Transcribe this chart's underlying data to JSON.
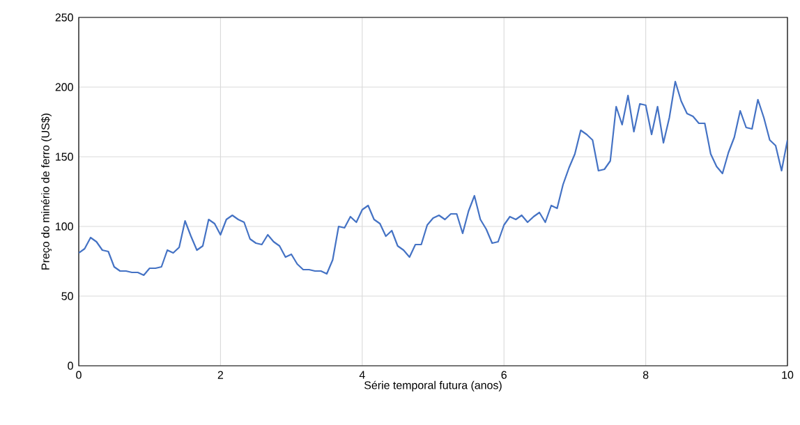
{
  "chart_data": {
    "type": "line",
    "xlabel": "Série temporal futura (anos)",
    "ylabel": "Preço do minério de ferro (US$)",
    "xlim": [
      0,
      10
    ],
    "xticks": [
      0,
      2,
      4,
      6,
      8,
      10
    ],
    "ylim": [
      0,
      250
    ],
    "yticks": [
      0,
      50,
      100,
      150,
      200,
      250
    ],
    "grid": true,
    "marker": "none",
    "line_style": "solid",
    "series": [
      {
        "color": "#4472c4",
        "x": [
          0,
          0.083,
          0.167,
          0.25,
          0.333,
          0.417,
          0.5,
          0.583,
          0.667,
          0.75,
          0.833,
          0.917,
          1,
          1.083,
          1.167,
          1.25,
          1.333,
          1.417,
          1.5,
          1.583,
          1.667,
          1.75,
          1.833,
          1.917,
          2,
          2.083,
          2.167,
          2.25,
          2.333,
          2.417,
          2.5,
          2.583,
          2.667,
          2.75,
          2.833,
          2.917,
          3,
          3.083,
          3.167,
          3.25,
          3.333,
          3.417,
          3.5,
          3.583,
          3.667,
          3.75,
          3.833,
          3.917,
          4,
          4.083,
          4.167,
          4.25,
          4.333,
          4.417,
          4.5,
          4.583,
          4.667,
          4.75,
          4.833,
          4.917,
          5,
          5.083,
          5.167,
          5.25,
          5.333,
          5.417,
          5.5,
          5.583,
          5.667,
          5.75,
          5.833,
          5.917,
          6,
          6.083,
          6.167,
          6.25,
          6.333,
          6.417,
          6.5,
          6.583,
          6.667,
          6.75,
          6.833,
          6.917,
          7,
          7.083,
          7.167,
          7.25,
          7.333,
          7.417,
          7.5,
          7.583,
          7.667,
          7.75,
          7.833,
          7.917,
          8,
          8.083,
          8.167,
          8.25,
          8.333,
          8.417,
          8.5,
          8.583,
          8.667,
          8.75,
          8.833,
          8.917,
          9,
          9.083,
          9.167,
          9.25,
          9.333,
          9.417,
          9.5,
          9.583,
          9.667,
          9.75,
          9.833,
          9.917,
          10
        ],
        "values": [
          81,
          84,
          92,
          89,
          83,
          82,
          71,
          68,
          68,
          67,
          67,
          65,
          70,
          70,
          71,
          83,
          81,
          85,
          104,
          93,
          83,
          86,
          105,
          102,
          94,
          105,
          108,
          105,
          103,
          91,
          88,
          87,
          94,
          89,
          86,
          78,
          80,
          73,
          69,
          69,
          68,
          68,
          66,
          76,
          100,
          99,
          107,
          103,
          112,
          115,
          105,
          102,
          93,
          97,
          86,
          83,
          78,
          87,
          87,
          101,
          106,
          108,
          105,
          109,
          109,
          95,
          111,
          122,
          105,
          98,
          88,
          89,
          101,
          107,
          105,
          108,
          103,
          107,
          110,
          103,
          115,
          113,
          130,
          142,
          152,
          169,
          166,
          162,
          140,
          141,
          147,
          186,
          173,
          194,
          168,
          188,
          187,
          166,
          186,
          160,
          178,
          204,
          190,
          181,
          179,
          174,
          174,
          152,
          143,
          138,
          153,
          164,
          183,
          171,
          170,
          191,
          178,
          162,
          158,
          140,
          162
        ]
      }
    ]
  }
}
